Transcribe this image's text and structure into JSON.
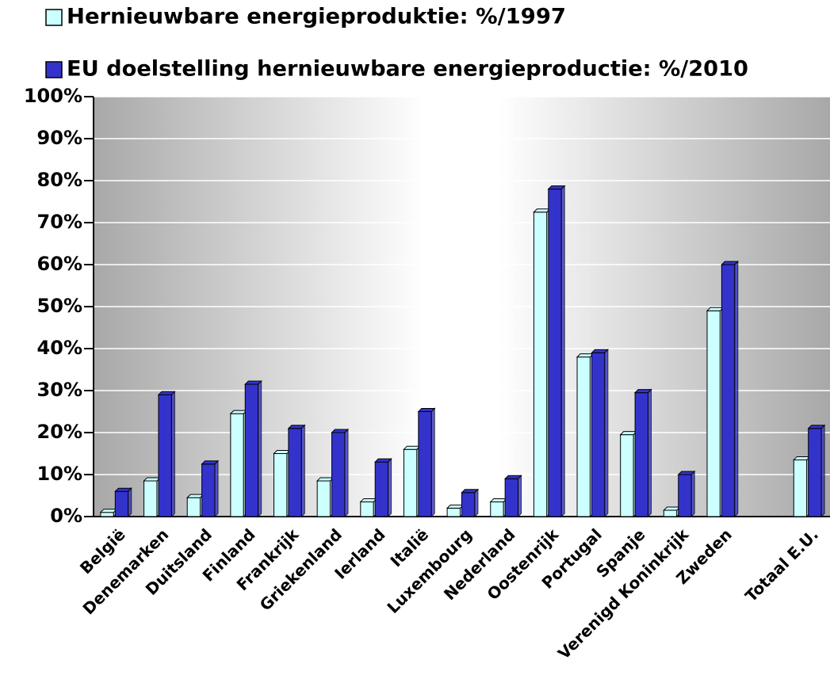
{
  "chart_data": {
    "type": "bar",
    "categories": [
      "België",
      "Denemarken",
      "Duitsland",
      "Finland",
      "Frankrijk",
      "Griekenland",
      "Ierland",
      "Italië",
      "Luxembourg",
      "Nederland",
      "Oostenrijk",
      "Portugal",
      "Spanje",
      "Verenigd Koninkrijk",
      "Zweden",
      null,
      "Totaal E.U."
    ],
    "series": [
      {
        "name": "Hernieuwbare energieproduktie: %/1997",
        "color": "#ccffff",
        "values": [
          1,
          8.5,
          4.5,
          24.5,
          15,
          8.5,
          3.5,
          16,
          2,
          3.5,
          72.5,
          38,
          19.5,
          1.5,
          49,
          null,
          13.5
        ]
      },
      {
        "name": "EU doelstelling hernieuwbare energieproductie: %/2010",
        "color": "#3333cc",
        "values": [
          6,
          29,
          12.5,
          31.5,
          21,
          20,
          13,
          25,
          5.7,
          9,
          78,
          39,
          29.5,
          10,
          60,
          null,
          21
        ]
      }
    ],
    "ylim": [
      0,
      100
    ],
    "yticks": [
      {
        "value": 0,
        "label": "0%"
      },
      {
        "value": 10,
        "label": "10%"
      },
      {
        "value": 20,
        "label": "20%"
      },
      {
        "value": 30,
        "label": "30%"
      },
      {
        "value": 40,
        "label": "40%"
      },
      {
        "value": 50,
        "label": "50%"
      },
      {
        "value": 60,
        "label": "60%"
      },
      {
        "value": 70,
        "label": "70%"
      },
      {
        "value": 80,
        "label": "80%"
      },
      {
        "value": 90,
        "label": "90%"
      },
      {
        "value": 100,
        "label": "100%"
      }
    ],
    "grid": true
  }
}
